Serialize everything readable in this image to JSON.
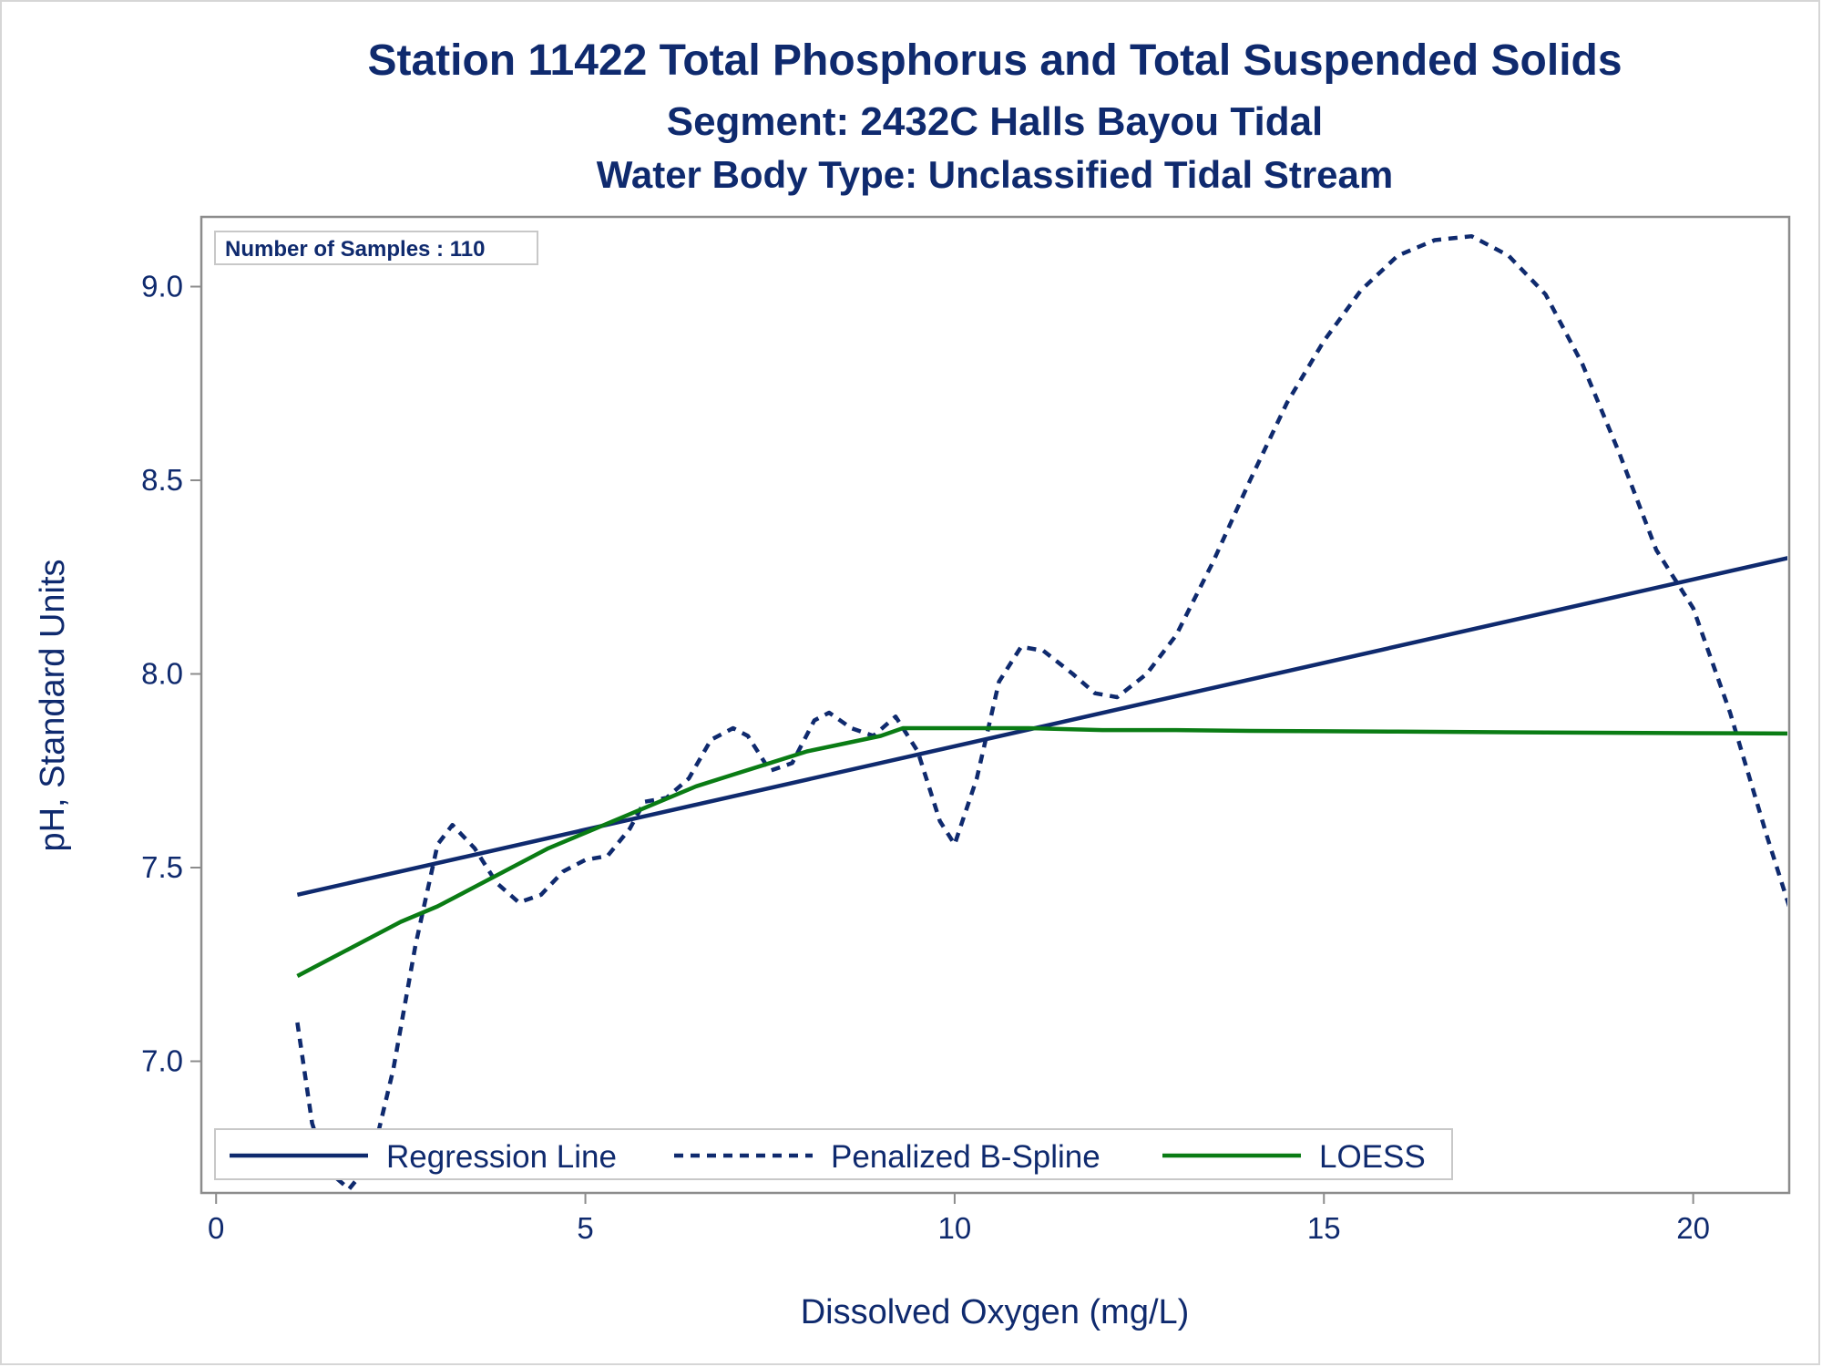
{
  "chart_data": {
    "type": "line",
    "title": "Station 11422  Total Phosphorus and Total Suspended Solids",
    "subtitle": "Segment: 2432C  Halls Bayou Tidal",
    "subtitle2": "Water Body Type: Unclassified Tidal Stream",
    "xlabel": "Dissolved Oxygen (mg/L)",
    "ylabel": "pH, Standard Units",
    "xlim": [
      -0.2,
      21.3
    ],
    "ylim": [
      6.66,
      9.18
    ],
    "x_ticks": [
      0,
      5,
      10,
      15,
      20
    ],
    "x_tick_labels": [
      "0",
      "5",
      "10",
      "15",
      "20"
    ],
    "y_ticks": [
      7.0,
      7.5,
      8.0,
      8.5,
      9.0
    ],
    "y_tick_labels": [
      "7.0",
      "7.5",
      "8.0",
      "8.5",
      "9.0"
    ],
    "inset_label": "Number of Samples : 110",
    "legend_position": "bottom-inside",
    "grid": false,
    "series": [
      {
        "name": "Regression Line",
        "style": "solid",
        "color": "#0f2a6e",
        "points": [
          [
            1.1,
            7.43
          ],
          [
            21.3,
            8.3
          ]
        ]
      },
      {
        "name": "Penalized B-Spline",
        "style": "dashed",
        "color": "#0f2a6e",
        "points": [
          [
            1.1,
            7.1
          ],
          [
            1.3,
            6.84
          ],
          [
            1.5,
            6.72
          ],
          [
            1.8,
            6.67
          ],
          [
            2.1,
            6.74
          ],
          [
            2.4,
            6.98
          ],
          [
            2.7,
            7.3
          ],
          [
            3.0,
            7.56
          ],
          [
            3.2,
            7.61
          ],
          [
            3.5,
            7.55
          ],
          [
            3.8,
            7.46
          ],
          [
            4.1,
            7.41
          ],
          [
            4.4,
            7.43
          ],
          [
            4.7,
            7.49
          ],
          [
            5.0,
            7.52
          ],
          [
            5.3,
            7.53
          ],
          [
            5.6,
            7.6
          ],
          [
            5.8,
            7.67
          ],
          [
            6.1,
            7.68
          ],
          [
            6.4,
            7.73
          ],
          [
            6.7,
            7.83
          ],
          [
            7.0,
            7.86
          ],
          [
            7.2,
            7.84
          ],
          [
            7.5,
            7.75
          ],
          [
            7.8,
            7.77
          ],
          [
            8.1,
            7.88
          ],
          [
            8.3,
            7.9
          ],
          [
            8.6,
            7.86
          ],
          [
            8.9,
            7.84
          ],
          [
            9.2,
            7.89
          ],
          [
            9.5,
            7.8
          ],
          [
            9.8,
            7.62
          ],
          [
            10.0,
            7.56
          ],
          [
            10.3,
            7.73
          ],
          [
            10.6,
            7.98
          ],
          [
            10.9,
            8.07
          ],
          [
            11.2,
            8.06
          ],
          [
            11.6,
            8.0
          ],
          [
            11.9,
            7.95
          ],
          [
            12.2,
            7.94
          ],
          [
            12.6,
            8.0
          ],
          [
            13.0,
            8.1
          ],
          [
            13.5,
            8.29
          ],
          [
            14.0,
            8.5
          ],
          [
            14.5,
            8.7
          ],
          [
            15.0,
            8.86
          ],
          [
            15.5,
            8.99
          ],
          [
            16.0,
            9.08
          ],
          [
            16.5,
            9.12
          ],
          [
            17.0,
            9.13
          ],
          [
            17.5,
            9.08
          ],
          [
            18.0,
            8.98
          ],
          [
            18.5,
            8.8
          ],
          [
            19.0,
            8.57
          ],
          [
            19.5,
            8.32
          ],
          [
            20.0,
            8.17
          ],
          [
            20.5,
            7.9
          ],
          [
            21.0,
            7.58
          ],
          [
            21.3,
            7.4
          ]
        ]
      },
      {
        "name": "LOESS",
        "style": "solid",
        "color": "#0a7c14",
        "points": [
          [
            1.1,
            7.22
          ],
          [
            1.5,
            7.26
          ],
          [
            2.0,
            7.31
          ],
          [
            2.5,
            7.36
          ],
          [
            3.0,
            7.4
          ],
          [
            3.5,
            7.45
          ],
          [
            4.0,
            7.5
          ],
          [
            4.5,
            7.55
          ],
          [
            5.0,
            7.59
          ],
          [
            5.5,
            7.63
          ],
          [
            6.0,
            7.67
          ],
          [
            6.5,
            7.71
          ],
          [
            7.0,
            7.74
          ],
          [
            7.5,
            7.77
          ],
          [
            8.0,
            7.8
          ],
          [
            8.5,
            7.82
          ],
          [
            9.0,
            7.84
          ],
          [
            9.3,
            7.86
          ],
          [
            10.0,
            7.86
          ],
          [
            11.0,
            7.86
          ],
          [
            12.0,
            7.855
          ],
          [
            13.0,
            7.855
          ],
          [
            14.0,
            7.853
          ],
          [
            15.0,
            7.852
          ],
          [
            16.0,
            7.851
          ],
          [
            17.0,
            7.85
          ],
          [
            18.0,
            7.849
          ],
          [
            19.0,
            7.848
          ],
          [
            20.0,
            7.847
          ],
          [
            21.3,
            7.846
          ]
        ]
      }
    ]
  }
}
